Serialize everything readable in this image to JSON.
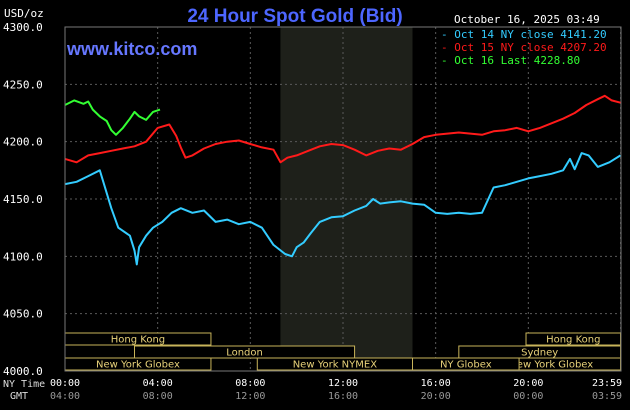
{
  "chart_data": {
    "type": "line",
    "title": "24 Hour Spot Gold (Bid)",
    "date_label": "October 16, 2025 03:49",
    "unit_label": "USD/oz",
    "watermark": "www.kitco.com",
    "ylim": [
      4000,
      4300
    ],
    "yticks": [
      "4300.0",
      "4250.0",
      "4200.0",
      "4150.0",
      "4100.0",
      "4050.0",
      "4000.0"
    ],
    "ytick_values": [
      4300,
      4250,
      4200,
      4150,
      4100,
      4050,
      4000
    ],
    "xlim": [
      0,
      24
    ],
    "xtick_hours": [
      0,
      4,
      8,
      12,
      16,
      20,
      23.983
    ],
    "ny_time_label": "NY Time",
    "gmt_label": "GMT",
    "ny_ticks": [
      "00:00",
      "04:00",
      "08:00",
      "12:00",
      "16:00",
      "20:00",
      "23:59"
    ],
    "gmt_ticks": [
      "04:00",
      "08:00",
      "12:00",
      "16:00",
      "20:00",
      "00:00",
      "03:59"
    ],
    "legend": [
      {
        "label": "Oct 14 NY close 4141.20",
        "color": "#33ccff"
      },
      {
        "label": "Oct 15 NY close 4207.20",
        "color": "#ff1a1a"
      },
      {
        "label": "Oct 16 Last 4228.80",
        "color": "#33ff33"
      }
    ],
    "shaded_session": [
      9.3,
      15.0
    ],
    "sessions": [
      {
        "label": "Hong Kong",
        "start": 0.0,
        "end": 6.3
      },
      {
        "label": "London",
        "start": 3.0,
        "end": 12.5
      },
      {
        "label": "New York Globex",
        "start": 0.0,
        "end": 6.3
      },
      {
        "label": "New York Globex",
        "start": 18.0,
        "end": 23.98
      },
      {
        "label": "New York NYMEX",
        "start": 8.3,
        "end": 15.0
      },
      {
        "label": "NY Globex",
        "start": 15.0,
        "end": 19.6
      },
      {
        "label": "Hong Kong",
        "start": 19.9,
        "end": 23.98
      },
      {
        "label": "Sydney",
        "start": 17.0,
        "end": 23.98
      }
    ],
    "series": [
      {
        "name": "Oct 14 NY close 4141.20",
        "color": "#33ccff",
        "x": [
          0,
          0.5,
          1,
          1.5,
          2,
          2.3,
          2.8,
          3.0,
          3.1,
          3.2,
          3.5,
          3.8,
          4.2,
          4.6,
          5.0,
          5.5,
          6.0,
          6.5,
          7.0,
          7.5,
          8.0,
          8.5,
          9.0,
          9.5,
          9.8,
          10.0,
          10.3,
          10.6,
          11.0,
          11.5,
          12.0,
          12.5,
          13.0,
          13.3,
          13.6,
          14.0,
          14.5,
          15.0,
          15.5,
          16.0,
          16.5,
          17.0,
          17.5,
          18.0,
          18.5,
          19.0,
          19.5,
          20.0,
          20.5,
          21.0,
          21.5,
          21.8,
          22.0,
          22.3,
          22.6,
          23.0,
          23.5,
          23.98
        ],
        "values": [
          4163,
          4165,
          4170,
          4175,
          4142,
          4125,
          4118,
          4105,
          4093,
          4108,
          4118,
          4125,
          4130,
          4138,
          4142,
          4138,
          4140,
          4130,
          4132,
          4128,
          4130,
          4125,
          4110,
          4102,
          4100,
          4108,
          4112,
          4120,
          4130,
          4134,
          4135,
          4140,
          4144,
          4150,
          4146,
          4147,
          4148,
          4146,
          4145,
          4138,
          4137,
          4138,
          4137,
          4138,
          4160,
          4162,
          4165,
          4168,
          4170,
          4172,
          4175,
          4185,
          4176,
          4190,
          4188,
          4178,
          4182,
          4188
        ]
      },
      {
        "name": "Oct 15 NY close 4207.20",
        "color": "#ff1a1a",
        "x": [
          0,
          0.5,
          1,
          1.5,
          2,
          2.5,
          3.0,
          3.5,
          4.0,
          4.5,
          4.8,
          5.0,
          5.2,
          5.5,
          6.0,
          6.5,
          7.0,
          7.5,
          8.0,
          8.5,
          9.0,
          9.3,
          9.6,
          10.0,
          10.5,
          11.0,
          11.5,
          12.0,
          12.5,
          13.0,
          13.5,
          14.0,
          14.5,
          15.0,
          15.5,
          16.0,
          16.5,
          17.0,
          17.5,
          18.0,
          18.5,
          19.0,
          19.5,
          20.0,
          20.5,
          21.0,
          21.5,
          22.0,
          22.5,
          23.0,
          23.3,
          23.6,
          23.98
        ],
        "values": [
          4185,
          4182,
          4188,
          4190,
          4192,
          4194,
          4196,
          4200,
          4212,
          4215,
          4205,
          4195,
          4186,
          4188,
          4194,
          4198,
          4200,
          4201,
          4198,
          4195,
          4193,
          4182,
          4186,
          4188,
          4192,
          4196,
          4198,
          4197,
          4193,
          4188,
          4192,
          4194,
          4193,
          4198,
          4204,
          4206,
          4207,
          4208,
          4207,
          4206,
          4209,
          4210,
          4212,
          4209,
          4212,
          4216,
          4220,
          4225,
          4232,
          4237,
          4240,
          4236,
          4234
        ]
      },
      {
        "name": "Oct 16 Last 4228.80",
        "color": "#33ff33",
        "x": [
          0,
          0.4,
          0.8,
          1.0,
          1.2,
          1.5,
          1.8,
          2.0,
          2.2,
          2.5,
          2.8,
          3.0,
          3.2,
          3.5,
          3.8,
          4.1
        ],
        "values": [
          4232,
          4236,
          4233,
          4235,
          4228,
          4222,
          4218,
          4210,
          4206,
          4212,
          4220,
          4226,
          4222,
          4219,
          4226,
          4228
        ]
      }
    ]
  }
}
